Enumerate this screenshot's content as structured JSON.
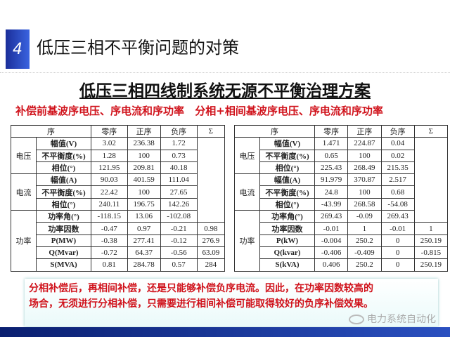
{
  "header": {
    "number": "4",
    "title": "低压三相不平衡问题的对策"
  },
  "subtitle": "低压三相四线制系统无源不平衡治理方案",
  "captions": [
    "补偿前基波序电压、序电流和序功率",
    "分相+相间基波序电压、序电流和序功率"
  ],
  "colors": {
    "accent": "#d0121b",
    "brand": "#1b2f9a"
  },
  "tables": [
    {
      "header": [
        "序",
        "零序",
        "正序",
        "负序",
        "Σ"
      ],
      "groups": [
        {
          "name": "电压",
          "rows": [
            [
              "幅值(V)",
              "3.02",
              "236.38",
              "1.72",
              ""
            ],
            [
              "不平衡度(%)",
              "1.28",
              "100",
              "0.73",
              ""
            ],
            [
              "相位(°)",
              "121.95",
              "209.81",
              "40.18",
              ""
            ]
          ]
        },
        {
          "name": "电流",
          "rows": [
            [
              "幅值(A)",
              "90.03",
              "401.59",
              "111.04",
              ""
            ],
            [
              "不平衡度(%)",
              "22.42",
              "100",
              "27.65",
              ""
            ],
            [
              "相位(°)",
              "240.11",
              "196.75",
              "142.26",
              ""
            ]
          ]
        },
        {
          "name": "功率",
          "rows": [
            [
              "功率角(°)",
              "-118.15",
              "13.06",
              "-102.08",
              ""
            ],
            [
              "功率因数",
              "-0.47",
              "0.97",
              "-0.21",
              "0.98"
            ],
            [
              "P(MW)",
              "-0.38",
              "277.41",
              "-0.12",
              "276.9"
            ],
            [
              "Q(Mvar)",
              "-0.72",
              "64.37",
              "-0.56",
              "63.09"
            ],
            [
              "S(MVA)",
              "0.81",
              "284.78",
              "0.57",
              "284"
            ]
          ]
        }
      ]
    },
    {
      "header": [
        "序",
        "零序",
        "正序",
        "负序",
        "Σ"
      ],
      "groups": [
        {
          "name": "电压",
          "rows": [
            [
              "幅值(V)",
              "1.471",
              "224.87",
              "0.04",
              ""
            ],
            [
              "不平衡度(%)",
              "0.65",
              "100",
              "0.02",
              ""
            ],
            [
              "相位(°)",
              "225.43",
              "268.49",
              "215.35",
              ""
            ]
          ]
        },
        {
          "name": "电流",
          "rows": [
            [
              "幅值(A)",
              "91.979",
              "370.87",
              "2.517",
              ""
            ],
            [
              "不平衡度(%)",
              "24.8",
              "100",
              "0.68",
              ""
            ],
            [
              "相位(°)",
              "-43.99",
              "268.58",
              "-54.08",
              ""
            ]
          ]
        },
        {
          "name": "功率",
          "rows": [
            [
              "功率角(°)",
              "269.43",
              "-0.09",
              "269.43",
              ""
            ],
            [
              "功率因数",
              "-0.01",
              "1",
              "-0.01",
              "1"
            ],
            [
              "P(kW)",
              "-0.004",
              "250.2",
              "0",
              "250.19"
            ],
            [
              "Q(kvar)",
              "-0.406",
              "-0.409",
              "0",
              "-0.815"
            ],
            [
              "S(kVA)",
              "0.406",
              "250.2",
              "0",
              "250.19"
            ]
          ]
        }
      ]
    }
  ],
  "note": [
    "分相补偿后，再相间补偿，还是只能够补偿负序电流。因此，在功率因数较高的",
    "场合，无须进行分相补偿，只需要进行相间补偿可能取得较好的负序补偿效果。"
  ],
  "watermark": "电力系统自动化"
}
